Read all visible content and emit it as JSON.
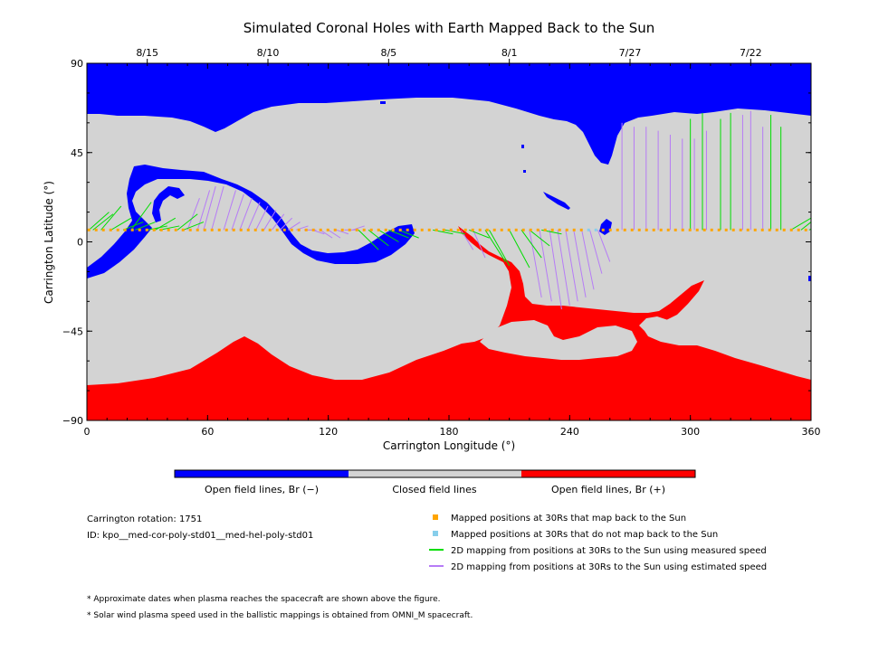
{
  "chart_data": {
    "type": "heatmap",
    "title": "Simulated Coronal Holes with Earth Mapped Back to the Sun",
    "xlabel": "Carrington Longitude (°)",
    "ylabel": "Carrington Latitude (°)",
    "xlim": [
      0,
      360
    ],
    "ylim": [
      -90,
      90
    ],
    "x_ticks": [
      "0",
      "60",
      "120",
      "180",
      "240",
      "300",
      "360"
    ],
    "y_ticks": [
      "90",
      "45",
      "0",
      "−45",
      "−90"
    ],
    "date_ticks": [
      {
        "label": "8/15",
        "lon": 30
      },
      {
        "label": "8/10",
        "lon": 90
      },
      {
        "label": "8/5",
        "lon": 150
      },
      {
        "label": "8/1",
        "lon": 210
      },
      {
        "label": "7/27",
        "lon": 270
      },
      {
        "label": "7/22",
        "lon": 330
      }
    ],
    "regions": {
      "open_negative": {
        "label": "Open field lines, Br (−)",
        "color": "#0000ff"
      },
      "closed": {
        "label": "Closed field lines",
        "color": "#d3d3d3"
      },
      "open_positive": {
        "label": "Open field lines, Br (+)",
        "color": "#ff0000"
      }
    },
    "earth_track": {
      "latitude": 6,
      "mapped_lon_start": 1,
      "mapped_lon_end": 358,
      "not_mapped_lon": [
        248,
        256
      ],
      "mapped_color": "#ffa500",
      "not_mapped_color": "#87ceeb"
    },
    "mappings_measured": [
      [
        1,
        15
      ],
      [
        3,
        14
      ],
      [
        7,
        18
      ],
      [
        12,
        12
      ],
      [
        18,
        10
      ],
      [
        22,
        20
      ],
      [
        24,
        10
      ],
      [
        30,
        8
      ],
      [
        34,
        12
      ],
      [
        36,
        8
      ],
      [
        45,
        14
      ],
      [
        48,
        10
      ],
      [
        135,
        -4
      ],
      [
        140,
        -2
      ],
      [
        145,
        0
      ],
      [
        150,
        2
      ],
      [
        155,
        2
      ],
      [
        172,
        4
      ],
      [
        178,
        4
      ],
      [
        190,
        2
      ],
      [
        198,
        -10
      ],
      [
        200,
        -12
      ],
      [
        210,
        -13
      ],
      [
        216,
        -8
      ],
      [
        220,
        -2
      ],
      [
        226,
        4
      ],
      [
        300,
        62
      ],
      [
        306,
        65
      ],
      [
        315,
        62
      ],
      [
        320,
        65
      ],
      [
        340,
        64
      ],
      [
        345,
        58
      ],
      [
        350,
        12
      ],
      [
        355,
        14
      ],
      [
        359,
        10
      ]
    ],
    "mappings_estimated": [
      [
        50,
        22
      ],
      [
        55,
        26
      ],
      [
        58,
        28
      ],
      [
        62,
        28
      ],
      [
        68,
        26
      ],
      [
        72,
        24
      ],
      [
        76,
        22
      ],
      [
        80,
        20
      ],
      [
        84,
        18
      ],
      [
        88,
        16
      ],
      [
        92,
        14
      ],
      [
        96,
        12
      ],
      [
        100,
        10
      ],
      [
        104,
        8
      ],
      [
        108,
        6
      ],
      [
        112,
        4
      ],
      [
        116,
        2
      ],
      [
        120,
        2
      ],
      [
        124,
        4
      ],
      [
        128,
        6
      ],
      [
        132,
        8
      ],
      [
        186,
        -4
      ],
      [
        192,
        -8
      ],
      [
        220,
        -28
      ],
      [
        225,
        -30
      ],
      [
        230,
        -34
      ],
      [
        234,
        -32
      ],
      [
        238,
        -30
      ],
      [
        242,
        -28
      ],
      [
        246,
        -24
      ],
      [
        250,
        -16
      ],
      [
        254,
        -10
      ],
      [
        266,
        60
      ],
      [
        272,
        58
      ],
      [
        278,
        58
      ],
      [
        284,
        56
      ],
      [
        290,
        54
      ],
      [
        296,
        52
      ],
      [
        302,
        52
      ],
      [
        308,
        56
      ],
      [
        326,
        64
      ],
      [
        330,
        66
      ],
      [
        336,
        58
      ]
    ],
    "legend": {
      "mapped": "Mapped positions at 30Rs that map back to the Sun",
      "not_mapped": "Mapped positions at 30Rs that do not map back to the Sun",
      "measured": "2D mapping from positions at 30Rs to the Sun using measured speed",
      "estimated": "2D mapping from positions at 30Rs to the Sun using estimated speed"
    }
  },
  "info": {
    "rotation": "Carrington rotation: 1751",
    "id": "ID: kpo__med-cor-poly-std01__med-hel-poly-std01"
  },
  "notes": [
    "* Approximate dates when plasma reaches the spacecraft are shown above the figure.",
    "* Solar wind plasma speed used in the ballistic mappings is obtained from OMNI_M spacecraft."
  ]
}
